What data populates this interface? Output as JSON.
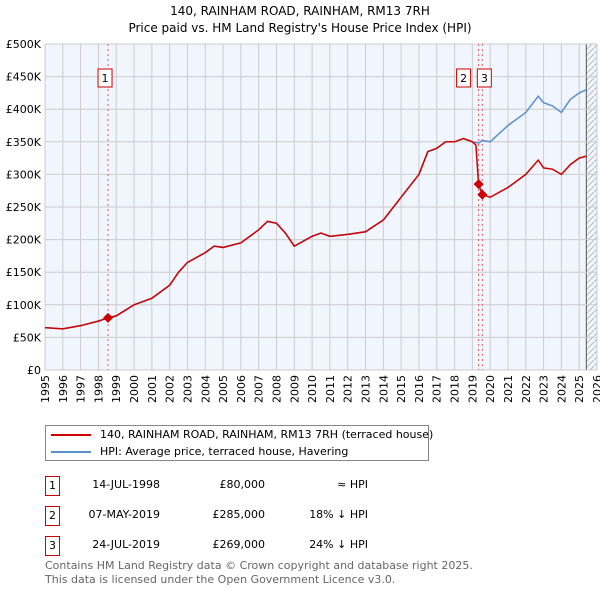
{
  "chart_data": {
    "type": "line",
    "title": "140, RAINHAM ROAD, RAINHAM, RM13 7RH",
    "subtitle": "Price paid vs. HM Land Registry's House Price Index (HPI)",
    "xlim": [
      1995,
      2026
    ],
    "ylim": [
      0,
      500000
    ],
    "x_ticks": [
      "1995",
      "1996",
      "1997",
      "1998",
      "1999",
      "2000",
      "2001",
      "2002",
      "2003",
      "2004",
      "2005",
      "2006",
      "2007",
      "2008",
      "2009",
      "2010",
      "2011",
      "2012",
      "2013",
      "2014",
      "2015",
      "2016",
      "2017",
      "2018",
      "2019",
      "2020",
      "2021",
      "2022",
      "2023",
      "2024",
      "2025",
      "2026"
    ],
    "y_ticks": [
      {
        "v": 0,
        "l": "£0"
      },
      {
        "v": 50000,
        "l": "£50K"
      },
      {
        "v": 100000,
        "l": "£100K"
      },
      {
        "v": 150000,
        "l": "£150K"
      },
      {
        "v": 200000,
        "l": "£200K"
      },
      {
        "v": 250000,
        "l": "£250K"
      },
      {
        "v": 300000,
        "l": "£300K"
      },
      {
        "v": 350000,
        "l": "£350K"
      },
      {
        "v": 400000,
        "l": "£400K"
      },
      {
        "v": 450000,
        "l": "£450K"
      },
      {
        "v": 500000,
        "l": "£500K"
      }
    ],
    "grid": true,
    "series": [
      {
        "name": "140, RAINHAM ROAD, RAINHAM, RM13 7RH (terraced house)",
        "color": "#cc0000",
        "x": [
          1995,
          1996,
          1997,
          1998,
          1998.54,
          1999,
          2000,
          2001,
          2002,
          2002.5,
          2003,
          2004,
          2004.5,
          2005,
          2006,
          2007,
          2007.5,
          2008,
          2008.5,
          2009,
          2010,
          2010.5,
          2011,
          2012,
          2013,
          2014,
          2015,
          2016,
          2016.5,
          2017,
          2017.5,
          2018,
          2018.5,
          2019,
          2019.2,
          2019.35,
          2019.56,
          2020,
          2021,
          2022,
          2022.7,
          2023,
          2023.5,
          2024,
          2024.5,
          2025,
          2025.4
        ],
        "y": [
          65000,
          63000,
          68000,
          75000,
          80000,
          83000,
          100000,
          110000,
          130000,
          150000,
          165000,
          180000,
          190000,
          188000,
          195000,
          215000,
          228000,
          225000,
          210000,
          190000,
          205000,
          210000,
          205000,
          208000,
          212000,
          230000,
          265000,
          300000,
          335000,
          340000,
          350000,
          350000,
          355000,
          350000,
          345000,
          285000,
          269000,
          265000,
          280000,
          300000,
          322000,
          310000,
          308000,
          300000,
          315000,
          325000,
          328000
        ]
      },
      {
        "name": "HPI: Average price, terraced house, Havering",
        "color": "#5b8fd0",
        "x": [
          1995,
          1996,
          1997,
          1998,
          1998.54,
          1999,
          2000,
          2001,
          2002,
          2002.5,
          2003,
          2004,
          2004.5,
          2005,
          2006,
          2007,
          2007.5,
          2008,
          2008.5,
          2009,
          2010,
          2010.5,
          2011,
          2012,
          2013,
          2014,
          2015,
          2016,
          2016.5,
          2017,
          2017.5,
          2018,
          2018.5,
          2019,
          2019.35,
          2019.56,
          2020,
          2021,
          2022,
          2022.7,
          2023,
          2023.5,
          2024,
          2024.5,
          2025,
          2025.4
        ],
        "y": [
          65000,
          63000,
          68000,
          75000,
          80000,
          83000,
          100000,
          110000,
          130000,
          150000,
          165000,
          180000,
          190000,
          188000,
          195000,
          215000,
          228000,
          225000,
          210000,
          190000,
          205000,
          210000,
          205000,
          208000,
          212000,
          230000,
          265000,
          300000,
          335000,
          340000,
          350000,
          350000,
          355000,
          350000,
          348000,
          352000,
          350000,
          375000,
          395000,
          420000,
          410000,
          405000,
          395000,
          415000,
          425000,
          430000
        ]
      }
    ],
    "sales": [
      {
        "label": "1",
        "x": 1998.54,
        "y": 80000,
        "date": "14-JUL-1998",
        "price": "£80,000",
        "hpi": "≈ HPI"
      },
      {
        "label": "2",
        "x": 2019.35,
        "y": 285000,
        "date": "07-MAY-2019",
        "price": "£285,000",
        "hpi": "18% ↓ HPI"
      },
      {
        "label": "3",
        "x": 2019.56,
        "y": 269000,
        "date": "24-JUL-2019",
        "price": "£269,000",
        "hpi": "24% ↓ HPI"
      }
    ],
    "hatch_from": 2025.4,
    "legend": "below"
  },
  "footer": [
    "Contains HM Land Registry data © Crown copyright and database right 2025.",
    "This data is licensed under the Open Government Licence v3.0."
  ]
}
